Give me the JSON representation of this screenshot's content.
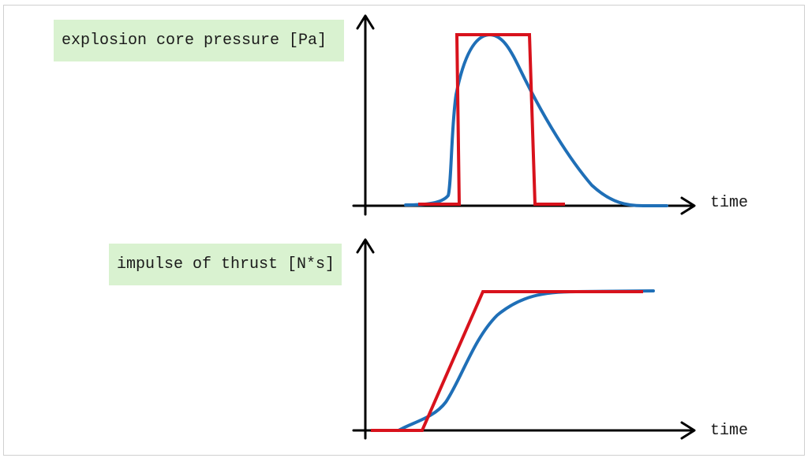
{
  "top_chart": {
    "label": "explosion core pressure [Pa]",
    "x_axis_label": "time",
    "series": [
      {
        "color": "#d8121c"
      },
      {
        "color": "#1f6fb7"
      }
    ]
  },
  "bottom_chart": {
    "label": "impulse of thrust [N*s]",
    "x_axis_label": "time",
    "series": [
      {
        "color": "#d8121c"
      },
      {
        "color": "#1f6fb7"
      }
    ]
  }
}
